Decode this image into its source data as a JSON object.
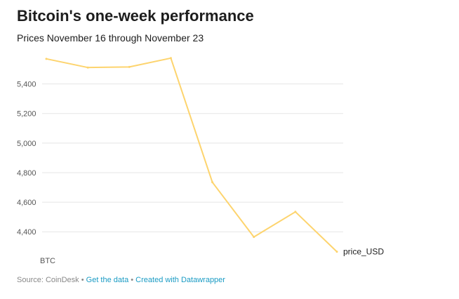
{
  "header": {
    "title": "Bitcoin's one-week performance",
    "subtitle": "Prices November 16 through November 23"
  },
  "footer": {
    "source": "Source: CoinDesk",
    "separator": "•",
    "get_data": "Get the data",
    "created_with": "Created with Datawrapper"
  },
  "colors": {
    "line": "#fdd46e",
    "grid": "#e5e5e5",
    "link": "#1a9bc4",
    "muted": "#888888"
  },
  "chart_data": {
    "type": "line",
    "title": "Bitcoin's one-week performance",
    "subtitle": "Prices November 16 through November 23",
    "x_label_start": "BTC",
    "series": [
      {
        "name": "price_USD",
        "values": [
          5570,
          5511,
          5515,
          5575,
          4735,
          4365,
          4535,
          4265
        ]
      }
    ],
    "ylim": [
      4230,
      5600
    ],
    "yticks": [
      4400,
      4600,
      4800,
      5000,
      5200,
      5400
    ],
    "ytick_labels": [
      "4,400",
      "4,600",
      "4,800",
      "5,000",
      "5,200",
      "5,400"
    ],
    "grid": true,
    "legend": "direct-label-right"
  }
}
